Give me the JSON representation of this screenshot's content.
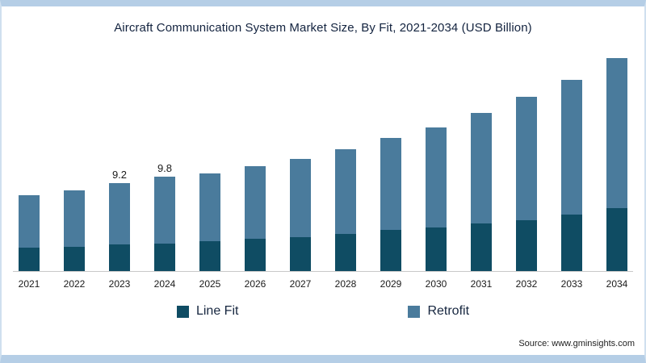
{
  "page": {
    "source": "Source: www.gminsights.com"
  },
  "colors": {
    "frame_border": "#b5cee6",
    "axis_line": "#c9c9c9",
    "title_text": "#13233f"
  },
  "chart_data": {
    "type": "bar",
    "stacked": true,
    "title": "Aircraft Communication System Market Size, By Fit, 2021-2034 (USD Billion)",
    "units": "USD Billion",
    "categories": [
      "2021",
      "2022",
      "2023",
      "2024",
      "2025",
      "2026",
      "2027",
      "2028",
      "2029",
      "2030",
      "2031",
      "2032",
      "2033",
      "2034"
    ],
    "series": [
      {
        "name": "Line Fit",
        "color": "#0f4c63",
        "values": [
          2.5,
          2.6,
          2.8,
          2.9,
          3.2,
          3.4,
          3.6,
          3.9,
          4.3,
          4.6,
          5.0,
          5.3,
          5.9,
          6.6
        ]
      },
      {
        "name": "Retrofit",
        "color": "#4a7b9c",
        "values": [
          5.4,
          5.8,
          6.4,
          6.9,
          7.0,
          7.5,
          8.1,
          8.8,
          9.5,
          10.3,
          11.4,
          12.8,
          13.9,
          15.5
        ]
      }
    ],
    "totals": [
      7.9,
      8.4,
      9.2,
      9.8,
      10.2,
      10.9,
      11.7,
      12.7,
      13.8,
      14.9,
      16.4,
      18.1,
      19.8,
      22.1
    ],
    "value_labels": [
      "",
      "",
      "9.2",
      "9.8",
      "",
      "",
      "",
      "",
      "",
      "",
      "",
      "",
      "",
      ""
    ],
    "xlabel": "",
    "ylabel": "",
    "ylim": [
      0,
      23
    ],
    "grid": false,
    "legend_position": "bottom"
  }
}
